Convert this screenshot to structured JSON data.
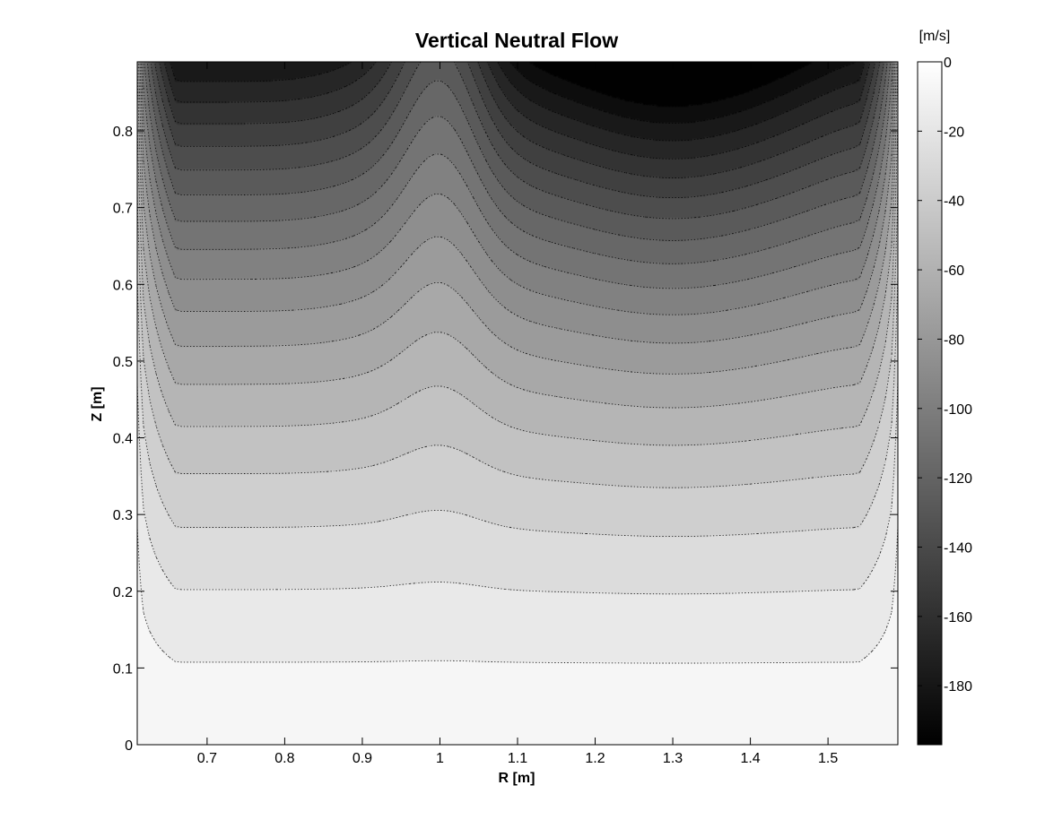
{
  "chart_data": {
    "type": "heatmap",
    "subtype": "filled-contour",
    "title": "Vertical Neutral Flow",
    "xlabel": "R [m]",
    "ylabel": "Z [m]",
    "xlim": [
      0.61,
      1.59
    ],
    "ylim": [
      0,
      0.89
    ],
    "xticks": [
      "0.7",
      "0.8",
      "0.9",
      "1",
      "1.1",
      "1.2",
      "1.3",
      "1.4",
      "1.5"
    ],
    "yticks": [
      "0",
      "0.1",
      "0.2",
      "0.3",
      "0.4",
      "0.5",
      "0.6",
      "0.7",
      "0.8"
    ],
    "colorbar": {
      "unit": "[m/s]",
      "range": [
        -197,
        0
      ],
      "ticks": [
        "0",
        "-20",
        "-40",
        "-60",
        "-80",
        "-100",
        "-120",
        "-140",
        "-160",
        "-180"
      ],
      "colormap": "gray",
      "color_low": "#000000",
      "color_high": "#ffffff"
    },
    "contour_levels": [
      -190,
      -180,
      -170,
      -160,
      -150,
      -140,
      -130,
      -120,
      -110,
      -100,
      -90,
      -80,
      -70,
      -60,
      -50,
      -40,
      -30,
      -20,
      -10
    ],
    "contour_line_style": "dotted",
    "contour_line_color": "#000000",
    "features": {
      "field_max": 0,
      "field_min": -197,
      "minimum_location": {
        "R": 1.13,
        "Z": 0.89
      },
      "zero_near": [
        "Z = 0",
        "R = 0.61 (top left corner)",
        "R = 1.59 (top right corner)"
      ],
      "bump_center_R": 1.0
    },
    "contour_traces": [
      {
        "level": -10,
        "points": [
          [
            0.61,
            0.105
          ],
          [
            0.7,
            0.088
          ],
          [
            0.8,
            0.08
          ],
          [
            0.9,
            0.089
          ],
          [
            1.0,
            0.103
          ],
          [
            1.1,
            0.092
          ],
          [
            1.2,
            0.082
          ],
          [
            1.3,
            0.077
          ],
          [
            1.4,
            0.08
          ],
          [
            1.5,
            0.095
          ],
          [
            1.59,
            0.13
          ]
        ]
      },
      {
        "level": -20,
        "points": [
          [
            0.61,
            0.205
          ],
          [
            0.7,
            0.17
          ],
          [
            0.8,
            0.162
          ],
          [
            0.9,
            0.178
          ],
          [
            1.0,
            0.2
          ],
          [
            1.1,
            0.185
          ],
          [
            1.2,
            0.164
          ],
          [
            1.3,
            0.155
          ],
          [
            1.4,
            0.162
          ],
          [
            1.5,
            0.185
          ],
          [
            1.59,
            0.24
          ]
        ]
      }
    ]
  }
}
